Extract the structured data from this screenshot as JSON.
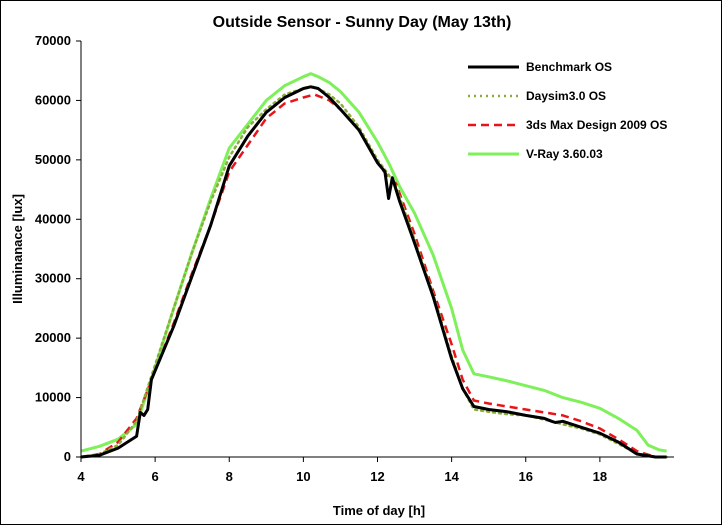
{
  "chart_data": {
    "type": "line",
    "title": "Outside Sensor - Sunny Day (May 13th)",
    "xlabel": "Time of day [h]",
    "ylabel": "Illuminanace [lux]",
    "xlim": [
      4,
      20
    ],
    "ylim": [
      0,
      70000
    ],
    "xticks": [
      4,
      6,
      8,
      10,
      12,
      14,
      16,
      18
    ],
    "yticks": [
      0,
      10000,
      20000,
      30000,
      40000,
      50000,
      60000,
      70000
    ],
    "grid": false,
    "legend": "top-right",
    "series": [
      {
        "name": "Benchmark OS",
        "color": "#000000",
        "style": "solid",
        "width": 3,
        "x": [
          4.0,
          4.5,
          5.0,
          5.5,
          5.6,
          5.7,
          5.8,
          5.9,
          6.0,
          6.5,
          7.0,
          7.5,
          8.0,
          8.5,
          9.0,
          9.5,
          10.0,
          10.2,
          10.4,
          10.7,
          11.0,
          11.5,
          12.0,
          12.2,
          12.3,
          12.4,
          12.5,
          12.6,
          13.0,
          13.5,
          14.0,
          14.3,
          14.6,
          15.0,
          15.5,
          16.0,
          16.5,
          16.7,
          16.8,
          17.0,
          17.5,
          18.0,
          18.5,
          19.0,
          19.5,
          19.8
        ],
        "y": [
          0,
          300,
          1500,
          3500,
          7500,
          7000,
          8000,
          13000,
          14500,
          22000,
          30500,
          39000,
          49000,
          54000,
          58000,
          60500,
          62000,
          62300,
          62000,
          60500,
          58500,
          55000,
          49500,
          48000,
          43500,
          47000,
          45000,
          43000,
          36000,
          27000,
          16500,
          11500,
          8500,
          8000,
          7600,
          7000,
          6500,
          6000,
          5800,
          6000,
          5000,
          4000,
          2500,
          500,
          0,
          0
        ]
      },
      {
        "name": "Daysim3.0 OS",
        "color": "#8aae3a",
        "style": "dotted",
        "width": 2.5,
        "x": [
          4.0,
          4.5,
          5.0,
          5.5,
          6.0,
          6.5,
          7.0,
          7.5,
          8.0,
          8.5,
          9.0,
          9.5,
          10.0,
          10.3,
          10.7,
          11.0,
          11.5,
          12.0,
          12.3,
          12.5,
          13.0,
          13.5,
          14.0,
          14.3,
          14.6,
          15.0,
          15.5,
          16.0,
          16.5,
          17.0,
          17.5,
          18.0,
          18.5,
          19.0,
          19.5,
          19.8
        ],
        "y": [
          0,
          500,
          2000,
          6000,
          15500,
          25000,
          34500,
          43000,
          50500,
          55500,
          58500,
          61000,
          62000,
          62300,
          61000,
          59500,
          55500,
          50000,
          47500,
          45500,
          36500,
          27500,
          17000,
          11500,
          8000,
          7600,
          7200,
          7000,
          6300,
          5500,
          4800,
          3800,
          2200,
          600,
          0,
          0
        ]
      },
      {
        "name": "3ds Max Design 2009 OS",
        "color": "#e8141a",
        "style": "dashed",
        "width": 2.5,
        "x": [
          4.0,
          4.5,
          5.0,
          5.5,
          6.0,
          6.5,
          7.0,
          7.5,
          8.0,
          8.5,
          9.0,
          9.5,
          10.0,
          10.3,
          10.7,
          11.0,
          11.5,
          12.0,
          12.3,
          12.5,
          13.0,
          13.5,
          14.0,
          14.3,
          14.6,
          15.0,
          15.5,
          16.0,
          16.5,
          17.0,
          17.5,
          18.0,
          18.5,
          19.0,
          19.5,
          19.8
        ],
        "y": [
          0,
          500,
          2500,
          6500,
          14500,
          22500,
          31000,
          39000,
          48000,
          52500,
          57000,
          59500,
          60500,
          61000,
          60000,
          58500,
          55000,
          49500,
          47000,
          46000,
          37500,
          28000,
          19000,
          13000,
          9500,
          9000,
          8500,
          8000,
          7500,
          7000,
          6000,
          4800,
          3000,
          1000,
          0,
          0
        ]
      },
      {
        "name": "V-Ray 3.60.03",
        "color": "#7ef05a",
        "style": "solid",
        "width": 3,
        "x": [
          4.0,
          4.5,
          5.0,
          5.5,
          6.0,
          6.5,
          7.0,
          7.5,
          8.0,
          8.5,
          9.0,
          9.5,
          10.0,
          10.2,
          10.4,
          10.7,
          11.0,
          11.5,
          12.0,
          12.3,
          12.6,
          13.0,
          13.5,
          14.0,
          14.3,
          14.6,
          15.0,
          15.5,
          16.0,
          16.5,
          17.0,
          17.5,
          18.0,
          18.5,
          19.0,
          19.3,
          19.6,
          19.8
        ],
        "y": [
          1000,
          1800,
          3000,
          5500,
          15000,
          25000,
          34500,
          43500,
          52000,
          56000,
          60000,
          62500,
          64000,
          64500,
          64000,
          63000,
          61500,
          58000,
          53000,
          49500,
          45500,
          41000,
          34000,
          25000,
          18000,
          14000,
          13500,
          12800,
          12000,
          11200,
          10000,
          9200,
          8200,
          6500,
          4500,
          2000,
          1200,
          1000
        ]
      }
    ]
  }
}
